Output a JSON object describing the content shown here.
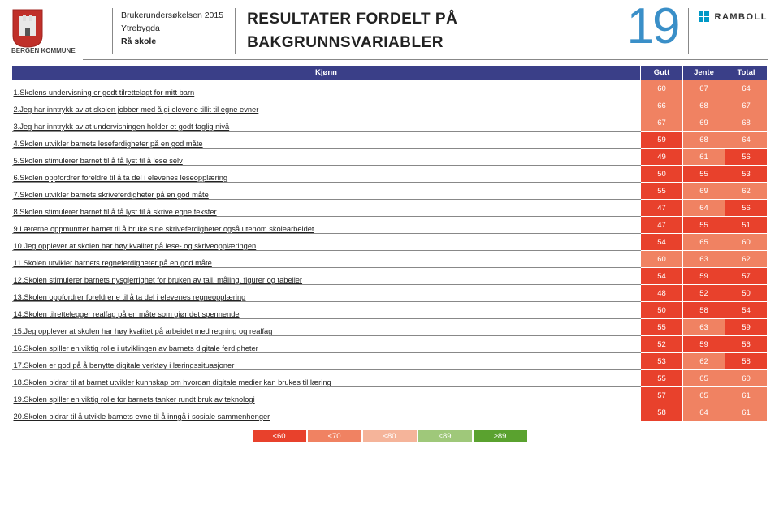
{
  "header": {
    "kommune": "BERGEN KOMMUNE",
    "survey": "Brukerundersøkelsen 2015",
    "district": "Ytrebygda",
    "school": "Rå skole",
    "title_line1": "RESULTATER FORDELT PÅ",
    "title_line2": "BAKGRUNNSVARIABLER",
    "page": "19",
    "brand": "RAMBOLL"
  },
  "table": {
    "header_q": "Kjønn",
    "cols": [
      "Gutt",
      "Jente",
      "Total"
    ],
    "rows": [
      {
        "q": "1.Skolens undervisning er godt tilrettelagt for mitt barn",
        "v": [
          60,
          67,
          64
        ]
      },
      {
        "q": "2.Jeg har inntrykk av at skolen jobber med å gi elevene tillit til egne evner",
        "v": [
          66,
          68,
          67
        ]
      },
      {
        "q": "3.Jeg har inntrykk av at undervisningen holder et godt faglig nivå",
        "v": [
          67,
          69,
          68
        ]
      },
      {
        "q": "4.Skolen utvikler barnets leseferdigheter på en god måte",
        "v": [
          59,
          68,
          64
        ]
      },
      {
        "q": "5.Skolen stimulerer barnet til å få lyst til å lese selv",
        "v": [
          49,
          61,
          56
        ]
      },
      {
        "q": "6.Skolen oppfordrer foreldre til å ta del i elevenes leseopplæring",
        "v": [
          50,
          55,
          53
        ]
      },
      {
        "q": "7.Skolen utvikler barnets skriveferdigheter på en god måte",
        "v": [
          55,
          69,
          62
        ]
      },
      {
        "q": "8.Skolen stimulerer barnet til å få lyst til å skrive egne tekster",
        "v": [
          47,
          64,
          56
        ]
      },
      {
        "q": "9.Lærerne oppmuntrer barnet til å bruke sine skriveferdigheter også utenom skolearbeidet",
        "v": [
          47,
          55,
          51
        ]
      },
      {
        "q": "10.Jeg opplever at skolen har høy kvalitet på lese- og skriveopplæringen",
        "v": [
          54,
          65,
          60
        ]
      },
      {
        "q": "11.Skolen utvikler barnets regneferdigheter på en god måte",
        "v": [
          60,
          63,
          62
        ]
      },
      {
        "q": "12.Skolen stimulerer barnets nysgjerrighet for bruken av tall, måling, figurer og tabeller",
        "v": [
          54,
          59,
          57
        ]
      },
      {
        "q": "13.Skolen oppfordrer foreldrene til å ta del i elevenes regneopplæring",
        "v": [
          48,
          52,
          50
        ]
      },
      {
        "q": "14.Skolen tilrettelegger realfag på en måte som gjør det spennende",
        "v": [
          50,
          58,
          54
        ]
      },
      {
        "q": "15.Jeg opplever at skolen har høy kvalitet på arbeidet med regning og realfag",
        "v": [
          55,
          63,
          59
        ]
      },
      {
        "q": "16.Skolen spiller en viktig rolle i utviklingen av barnets digitale ferdigheter",
        "v": [
          52,
          59,
          56
        ]
      },
      {
        "q": "17.Skolen er god på å benytte digitale verktøy i læringssituasjoner",
        "v": [
          53,
          62,
          58
        ]
      },
      {
        "q": "18.Skolen bidrar til at barnet utvikler kunnskap om hvordan digitale medier kan brukes til læring",
        "v": [
          55,
          65,
          60
        ]
      },
      {
        "q": "19.Skolen spiller en viktig rolle for barnets tanker rundt bruk av teknologi",
        "v": [
          57,
          65,
          61
        ]
      },
      {
        "q": "20.Skolen bidrar til å utvikle barnets evne til å inngå i sosiale sammenhenger",
        "v": [
          58,
          64,
          61
        ]
      }
    ]
  },
  "scale": {
    "bands": [
      {
        "label": "<60",
        "color": "#e8412c"
      },
      {
        "label": "<70",
        "color": "#f08262"
      },
      {
        "label": "<80",
        "color": "#f5b49a"
      },
      {
        "label": "<89",
        "color": "#9fc87a"
      },
      {
        "label": "≥89",
        "color": "#5aa22f"
      }
    ]
  },
  "colors": {
    "header_bg": "#3a3f88"
  }
}
